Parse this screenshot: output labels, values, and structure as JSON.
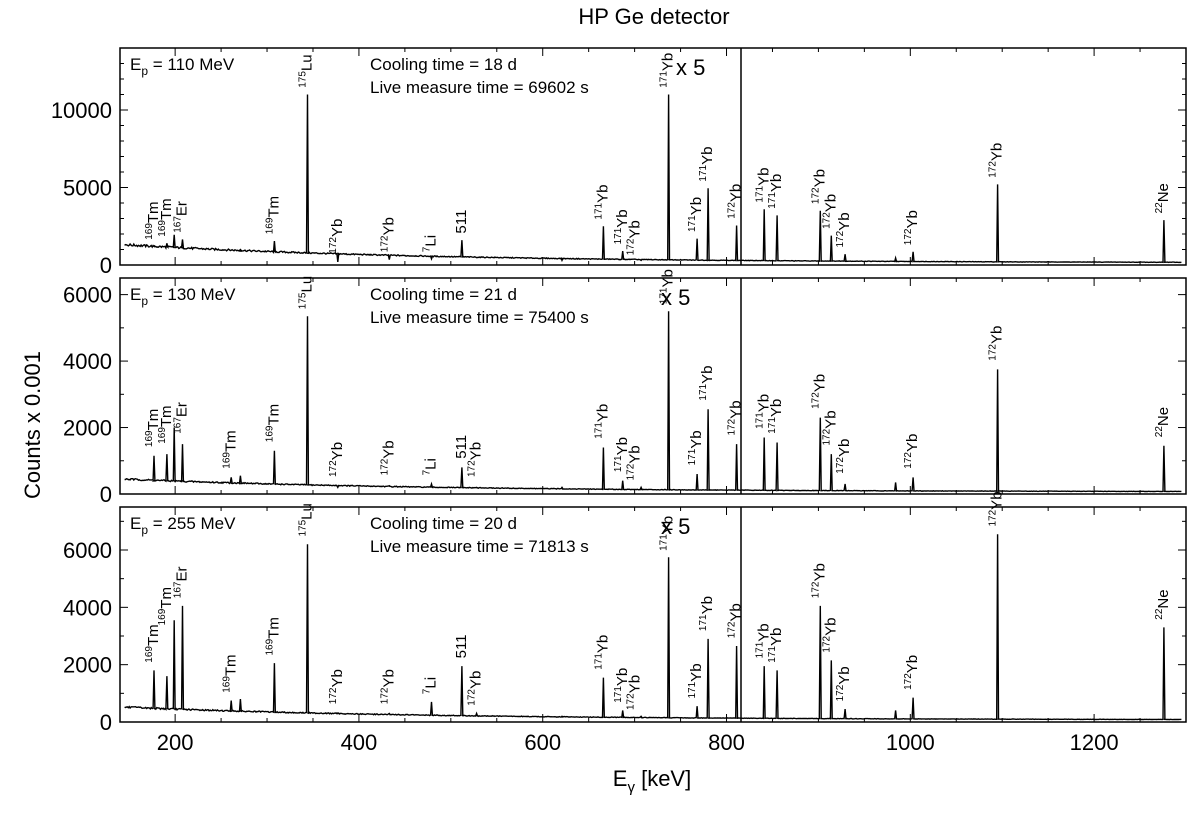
{
  "title": "HP Ge detector",
  "xlabel_main": "E",
  "xlabel_sub": "γ",
  "xlabel_unit": " [keV]",
  "ylabel": "Counts x 0.001",
  "x_ticks": [
    "200",
    "400",
    "600",
    "800",
    "1000",
    "1200"
  ],
  "chart_data": [
    {
      "type": "line",
      "xlim": [
        140,
        1300
      ],
      "ylim": [
        0,
        14000
      ],
      "ep_prefix": "E",
      "ep_sub": "p",
      "ep_value": " = 110 MeV",
      "cooling": "Cooling time = 18 d",
      "live": "Live measure time = 69602 s",
      "magnify": "x 5",
      "y_ticks": [
        "0",
        "5000",
        "10000"
      ],
      "peaks": [
        {
          "x": 176,
          "y": 1200
        },
        {
          "x": 190,
          "y": 1400
        },
        {
          "x": 198,
          "y": 1950
        },
        {
          "x": 207,
          "y": 1650
        },
        {
          "x": 270,
          "y": 1000
        },
        {
          "x": 307,
          "y": 1550
        },
        {
          "x": 343,
          "y": 11000
        },
        {
          "x": 376,
          "y": 200
        },
        {
          "x": 432,
          "y": 350
        },
        {
          "x": 478,
          "y": 400
        },
        {
          "x": 511,
          "y": 1600
        },
        {
          "x": 620,
          "y": 300
        },
        {
          "x": 665,
          "y": 2500
        },
        {
          "x": 686,
          "y": 900
        },
        {
          "x": 706,
          "y": 300
        },
        {
          "x": 736,
          "y": 11000
        },
        {
          "x": 767,
          "y": 1700
        },
        {
          "x": 779,
          "y": 4950
        },
        {
          "x": 810,
          "y": 2550
        },
        {
          "x": 840,
          "y": 3600
        },
        {
          "x": 854,
          "y": 3200
        },
        {
          "x": 901,
          "y": 3500
        },
        {
          "x": 913,
          "y": 1900
        },
        {
          "x": 928,
          "y": 700
        },
        {
          "x": 983,
          "y": 450
        },
        {
          "x": 1002,
          "y": 850
        },
        {
          "x": 1094,
          "y": 5200
        },
        {
          "x": 1275,
          "y": 2900
        }
      ],
      "labels": [
        {
          "mass": "169",
          "elem": "Tm",
          "x": 176,
          "y": 1500
        },
        {
          "mass": "169",
          "elem": "Tm",
          "x": 190,
          "y": 1700
        },
        {
          "mass": "167",
          "elem": "Er",
          "x": 207,
          "y": 1950
        },
        {
          "mass": "169",
          "elem": "Tm",
          "x": 307,
          "y": 1850
        },
        {
          "mass": "175",
          "elem": "Lu",
          "x": 343,
          "y": 11300
        },
        {
          "mass": "172",
          "elem": "Yb",
          "x": 376,
          "y": 600
        },
        {
          "mass": "172",
          "elem": "Yb",
          "x": 432,
          "y": 700
        },
        {
          "mass": "7",
          "elem": "Li",
          "x": 478,
          "y": 700
        },
        {
          "mass": "",
          "elem": "511",
          "x": 511,
          "y": 1900
        },
        {
          "mass": "171",
          "elem": "Yb",
          "x": 665,
          "y": 2800
        },
        {
          "mass": "171",
          "elem": "Yb",
          "x": 686,
          "y": 1200
        },
        {
          "mass": "172",
          "elem": "Yb",
          "x": 700,
          "y": 500
        },
        {
          "mass": "171",
          "elem": "Yb",
          "x": 736,
          "y": 11300
        },
        {
          "mass": "171",
          "elem": "Yb",
          "x": 767,
          "y": 2000
        },
        {
          "mass": "171",
          "elem": "Yb",
          "x": 779,
          "y": 5250
        },
        {
          "mass": "172",
          "elem": "Yb",
          "x": 810,
          "y": 2850
        },
        {
          "mass": "171",
          "elem": "Yb",
          "x": 840,
          "y": 3900
        },
        {
          "mass": "171",
          "elem": "Yb",
          "x": 854,
          "y": 3500
        },
        {
          "mass": "172",
          "elem": "Yb",
          "x": 901,
          "y": 3800
        },
        {
          "mass": "172",
          "elem": "Yb",
          "x": 913,
          "y": 2200
        },
        {
          "mass": "172",
          "elem": "Yb",
          "x": 928,
          "y": 1000
        },
        {
          "mass": "172",
          "elem": "Yb",
          "x": 1002,
          "y": 1150
        },
        {
          "mass": "172",
          "elem": "Yb",
          "x": 1094,
          "y": 5500
        },
        {
          "mass": "22",
          "elem": "Ne",
          "x": 1275,
          "y": 3200
        }
      ]
    },
    {
      "type": "line",
      "xlim": [
        140,
        1300
      ],
      "ylim": [
        0,
        6500
      ],
      "ep_prefix": "E",
      "ep_sub": "p",
      "ep_value": " = 130 MeV",
      "cooling": "Cooling time = 21 d",
      "live": "Live measure time = 75400 s",
      "magnify": "x 5",
      "y_ticks": [
        "0",
        "2000",
        "4000",
        "6000"
      ],
      "peaks": [
        {
          "x": 176,
          "y": 1150
        },
        {
          "x": 190,
          "y": 1200
        },
        {
          "x": 198,
          "y": 2000
        },
        {
          "x": 207,
          "y": 1500
        },
        {
          "x": 260,
          "y": 500
        },
        {
          "x": 270,
          "y": 550
        },
        {
          "x": 307,
          "y": 1300
        },
        {
          "x": 343,
          "y": 5350
        },
        {
          "x": 376,
          "y": 200
        },
        {
          "x": 432,
          "y": 250
        },
        {
          "x": 478,
          "y": 300
        },
        {
          "x": 511,
          "y": 800
        },
        {
          "x": 527,
          "y": 200
        },
        {
          "x": 620,
          "y": 200
        },
        {
          "x": 665,
          "y": 1400
        },
        {
          "x": 686,
          "y": 400
        },
        {
          "x": 706,
          "y": 200
        },
        {
          "x": 736,
          "y": 5500
        },
        {
          "x": 767,
          "y": 600
        },
        {
          "x": 779,
          "y": 2550
        },
        {
          "x": 810,
          "y": 1500
        },
        {
          "x": 840,
          "y": 1700
        },
        {
          "x": 854,
          "y": 1550
        },
        {
          "x": 901,
          "y": 2300
        },
        {
          "x": 913,
          "y": 1200
        },
        {
          "x": 928,
          "y": 300
        },
        {
          "x": 983,
          "y": 350
        },
        {
          "x": 1002,
          "y": 500
        },
        {
          "x": 1094,
          "y": 3750
        },
        {
          "x": 1275,
          "y": 1450
        }
      ],
      "labels": [
        {
          "mass": "169",
          "elem": "Tm",
          "x": 176,
          "y": 1350
        },
        {
          "mass": "169",
          "elem": "Tm",
          "x": 190,
          "y": 1450
        },
        {
          "mass": "167",
          "elem": "Er",
          "x": 207,
          "y": 1750
        },
        {
          "mass": "169",
          "elem": "Tm",
          "x": 260,
          "y": 700
        },
        {
          "mass": "169",
          "elem": "Tm",
          "x": 307,
          "y": 1500
        },
        {
          "mass": "175",
          "elem": "Lu",
          "x": 343,
          "y": 5500
        },
        {
          "mass": "172",
          "elem": "Yb",
          "x": 376,
          "y": 450
        },
        {
          "mass": "172",
          "elem": "Yb",
          "x": 432,
          "y": 500
        },
        {
          "mass": "7",
          "elem": "Li",
          "x": 478,
          "y": 500
        },
        {
          "mass": "",
          "elem": "511",
          "x": 511,
          "y": 1000
        },
        {
          "mass": "172",
          "elem": "Yb",
          "x": 527,
          "y": 450
        },
        {
          "mass": "171",
          "elem": "Yb",
          "x": 665,
          "y": 1600
        },
        {
          "mass": "171",
          "elem": "Yb",
          "x": 686,
          "y": 600
        },
        {
          "mass": "172",
          "elem": "Yb",
          "x": 700,
          "y": 350
        },
        {
          "mass": "171",
          "elem": "Yb",
          "x": 736,
          "y": 5650
        },
        {
          "mass": "171",
          "elem": "Yb",
          "x": 767,
          "y": 800
        },
        {
          "mass": "171",
          "elem": "Yb",
          "x": 779,
          "y": 2750
        },
        {
          "mass": "172",
          "elem": "Yb",
          "x": 810,
          "y": 1700
        },
        {
          "mass": "171",
          "elem": "Yb",
          "x": 840,
          "y": 1900
        },
        {
          "mass": "171",
          "elem": "Yb",
          "x": 854,
          "y": 1750
        },
        {
          "mass": "172",
          "elem": "Yb",
          "x": 901,
          "y": 2500
        },
        {
          "mass": "172",
          "elem": "Yb",
          "x": 913,
          "y": 1400
        },
        {
          "mass": "172",
          "elem": "Yb",
          "x": 928,
          "y": 550
        },
        {
          "mass": "172",
          "elem": "Yb",
          "x": 1002,
          "y": 700
        },
        {
          "mass": "172",
          "elem": "Yb",
          "x": 1094,
          "y": 3950
        },
        {
          "mass": "22",
          "elem": "Ne",
          "x": 1275,
          "y": 1650
        }
      ]
    },
    {
      "type": "line",
      "xlim": [
        140,
        1300
      ],
      "ylim": [
        0,
        7500
      ],
      "ep_prefix": "E",
      "ep_sub": "p",
      "ep_value": " = 255 MeV",
      "cooling": "Cooling time = 20 d",
      "live": "Live measure time = 71813 s",
      "magnify": "x 5",
      "y_ticks": [
        "0",
        "2000",
        "4000",
        "6000"
      ],
      "peaks": [
        {
          "x": 176,
          "y": 1800
        },
        {
          "x": 190,
          "y": 1600
        },
        {
          "x": 198,
          "y": 3550
        },
        {
          "x": 207,
          "y": 4050
        },
        {
          "x": 260,
          "y": 750
        },
        {
          "x": 270,
          "y": 800
        },
        {
          "x": 307,
          "y": 2050
        },
        {
          "x": 343,
          "y": 6200
        },
        {
          "x": 376,
          "y": 300
        },
        {
          "x": 432,
          "y": 300
        },
        {
          "x": 478,
          "y": 700
        },
        {
          "x": 511,
          "y": 1950
        },
        {
          "x": 527,
          "y": 300
        },
        {
          "x": 620,
          "y": 200
        },
        {
          "x": 665,
          "y": 1550
        },
        {
          "x": 686,
          "y": 400
        },
        {
          "x": 706,
          "y": 200
        },
        {
          "x": 736,
          "y": 5750
        },
        {
          "x": 767,
          "y": 550
        },
        {
          "x": 779,
          "y": 2900
        },
        {
          "x": 810,
          "y": 2650
        },
        {
          "x": 840,
          "y": 1950
        },
        {
          "x": 854,
          "y": 1800
        },
        {
          "x": 901,
          "y": 4050
        },
        {
          "x": 913,
          "y": 2150
        },
        {
          "x": 928,
          "y": 450
        },
        {
          "x": 983,
          "y": 400
        },
        {
          "x": 1002,
          "y": 850
        },
        {
          "x": 1094,
          "y": 6550
        },
        {
          "x": 1275,
          "y": 3300
        }
      ],
      "labels": [
        {
          "mass": "169",
          "elem": "Tm",
          "x": 176,
          "y": 2000
        },
        {
          "mass": "169",
          "elem": "Tm",
          "x": 190,
          "y": 3300
        },
        {
          "mass": "167",
          "elem": "Er",
          "x": 207,
          "y": 4250
        },
        {
          "mass": "169",
          "elem": "Tm",
          "x": 260,
          "y": 950
        },
        {
          "mass": "169",
          "elem": "Tm",
          "x": 307,
          "y": 2250
        },
        {
          "mass": "175",
          "elem": "Lu",
          "x": 343,
          "y": 6400
        },
        {
          "mass": "172",
          "elem": "Yb",
          "x": 376,
          "y": 550
        },
        {
          "mass": "172",
          "elem": "Yb",
          "x": 432,
          "y": 550
        },
        {
          "mass": "7",
          "elem": "Li",
          "x": 478,
          "y": 900
        },
        {
          "mass": "",
          "elem": "511",
          "x": 511,
          "y": 2150
        },
        {
          "mass": "172",
          "elem": "Yb",
          "x": 527,
          "y": 500
        },
        {
          "mass": "171",
          "elem": "Yb",
          "x": 665,
          "y": 1750
        },
        {
          "mass": "171",
          "elem": "Yb",
          "x": 686,
          "y": 600
        },
        {
          "mass": "172",
          "elem": "Yb",
          "x": 700,
          "y": 350
        },
        {
          "mass": "171",
          "elem": "Yb",
          "x": 736,
          "y": 5900
        },
        {
          "mass": "171",
          "elem": "Yb",
          "x": 767,
          "y": 750
        },
        {
          "mass": "171",
          "elem": "Yb",
          "x": 779,
          "y": 3100
        },
        {
          "mass": "172",
          "elem": "Yb",
          "x": 810,
          "y": 2850
        },
        {
          "mass": "171",
          "elem": "Yb",
          "x": 840,
          "y": 2150
        },
        {
          "mass": "171",
          "elem": "Yb",
          "x": 854,
          "y": 2000
        },
        {
          "mass": "172",
          "elem": "Yb",
          "x": 901,
          "y": 4250
        },
        {
          "mass": "172",
          "elem": "Yb",
          "x": 913,
          "y": 2350
        },
        {
          "mass": "172",
          "elem": "Yb",
          "x": 928,
          "y": 650
        },
        {
          "mass": "172",
          "elem": "Yb",
          "x": 1002,
          "y": 1050
        },
        {
          "mass": "172",
          "elem": "Yb",
          "x": 1094,
          "y": 6750
        },
        {
          "mass": "22",
          "elem": "Ne",
          "x": 1275,
          "y": 3500
        }
      ]
    }
  ]
}
